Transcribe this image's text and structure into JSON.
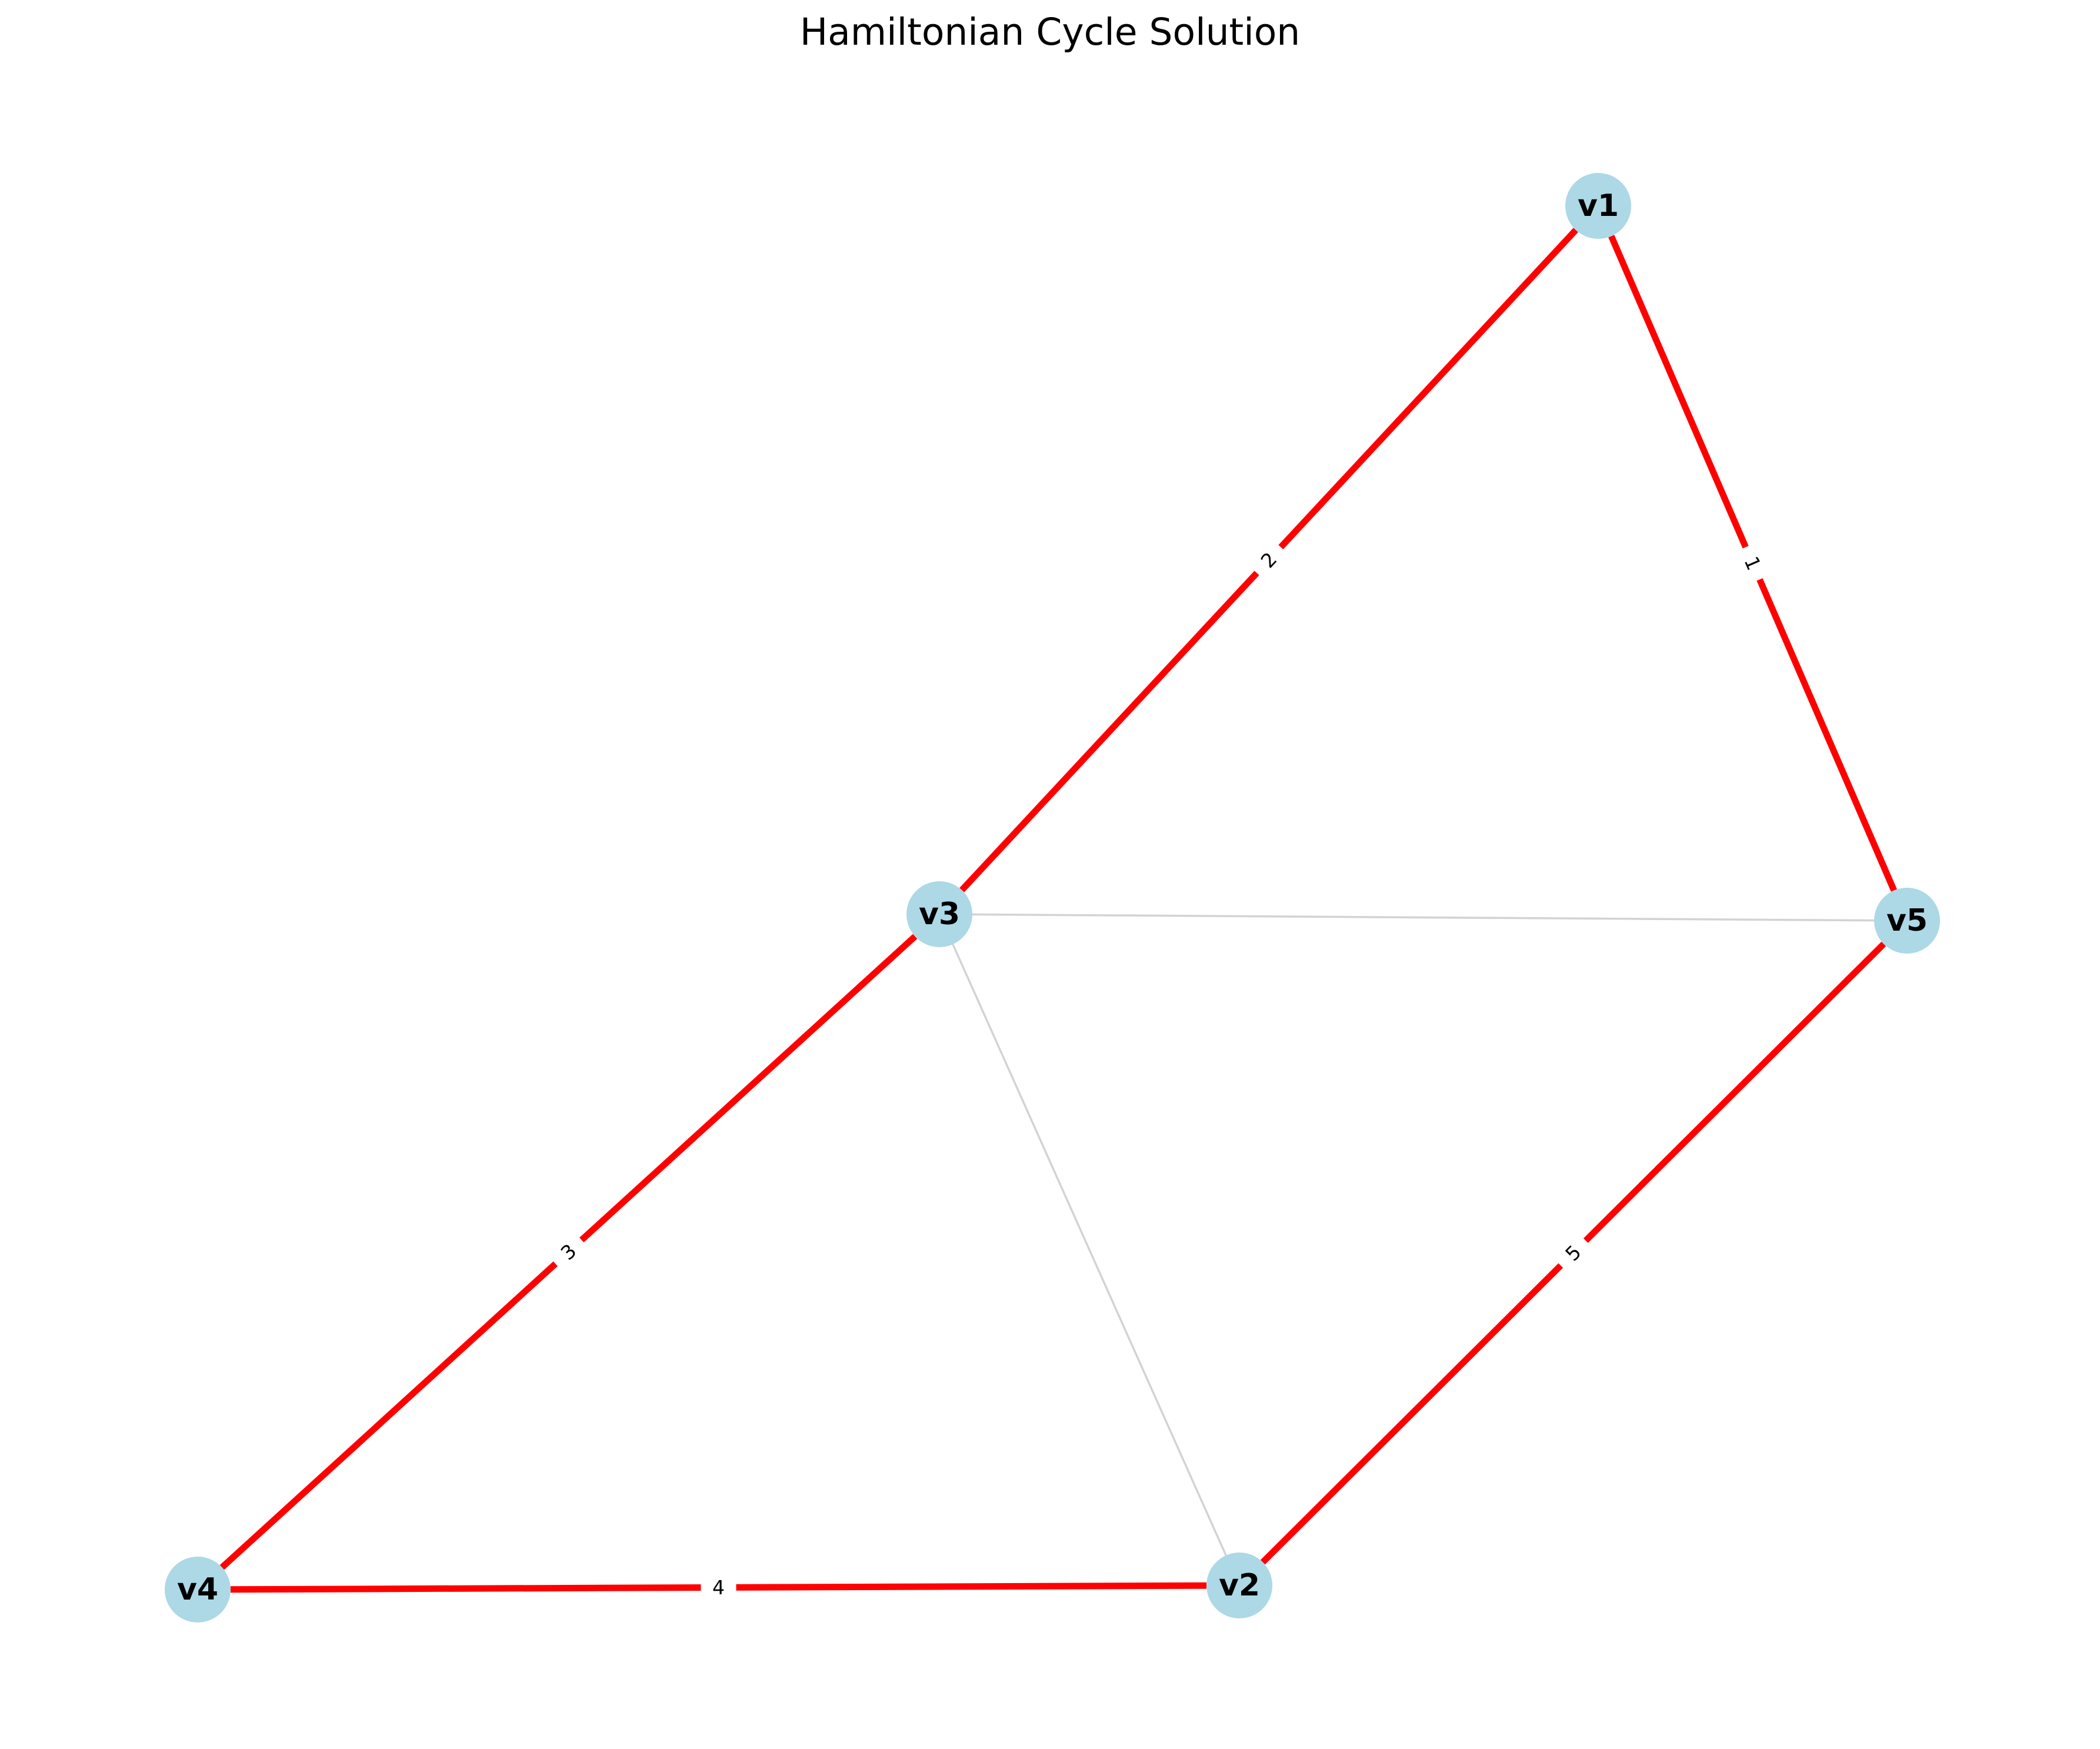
{
  "title": "Hamiltonian Cycle Solution",
  "colors": {
    "cycle_edge": "#ff0000",
    "other_edge": "#d3d3d3",
    "node_fill": "#add8e6",
    "text": "#000000",
    "edge_label_bg": "#ffffff"
  },
  "nodes": [
    {
      "id": "v1",
      "label": "v1"
    },
    {
      "id": "v2",
      "label": "v2"
    },
    {
      "id": "v3",
      "label": "v3"
    },
    {
      "id": "v4",
      "label": "v4"
    },
    {
      "id": "v5",
      "label": "v5"
    }
  ],
  "edges": [
    {
      "source": "v1",
      "target": "v5",
      "in_cycle": true,
      "label": "1"
    },
    {
      "source": "v1",
      "target": "v3",
      "in_cycle": true,
      "label": "2"
    },
    {
      "source": "v3",
      "target": "v4",
      "in_cycle": true,
      "label": "3"
    },
    {
      "source": "v4",
      "target": "v2",
      "in_cycle": true,
      "label": "4"
    },
    {
      "source": "v2",
      "target": "v5",
      "in_cycle": true,
      "label": "5"
    },
    {
      "source": "v3",
      "target": "v5",
      "in_cycle": false,
      "label": ""
    },
    {
      "source": "v3",
      "target": "v2",
      "in_cycle": false,
      "label": ""
    }
  ]
}
